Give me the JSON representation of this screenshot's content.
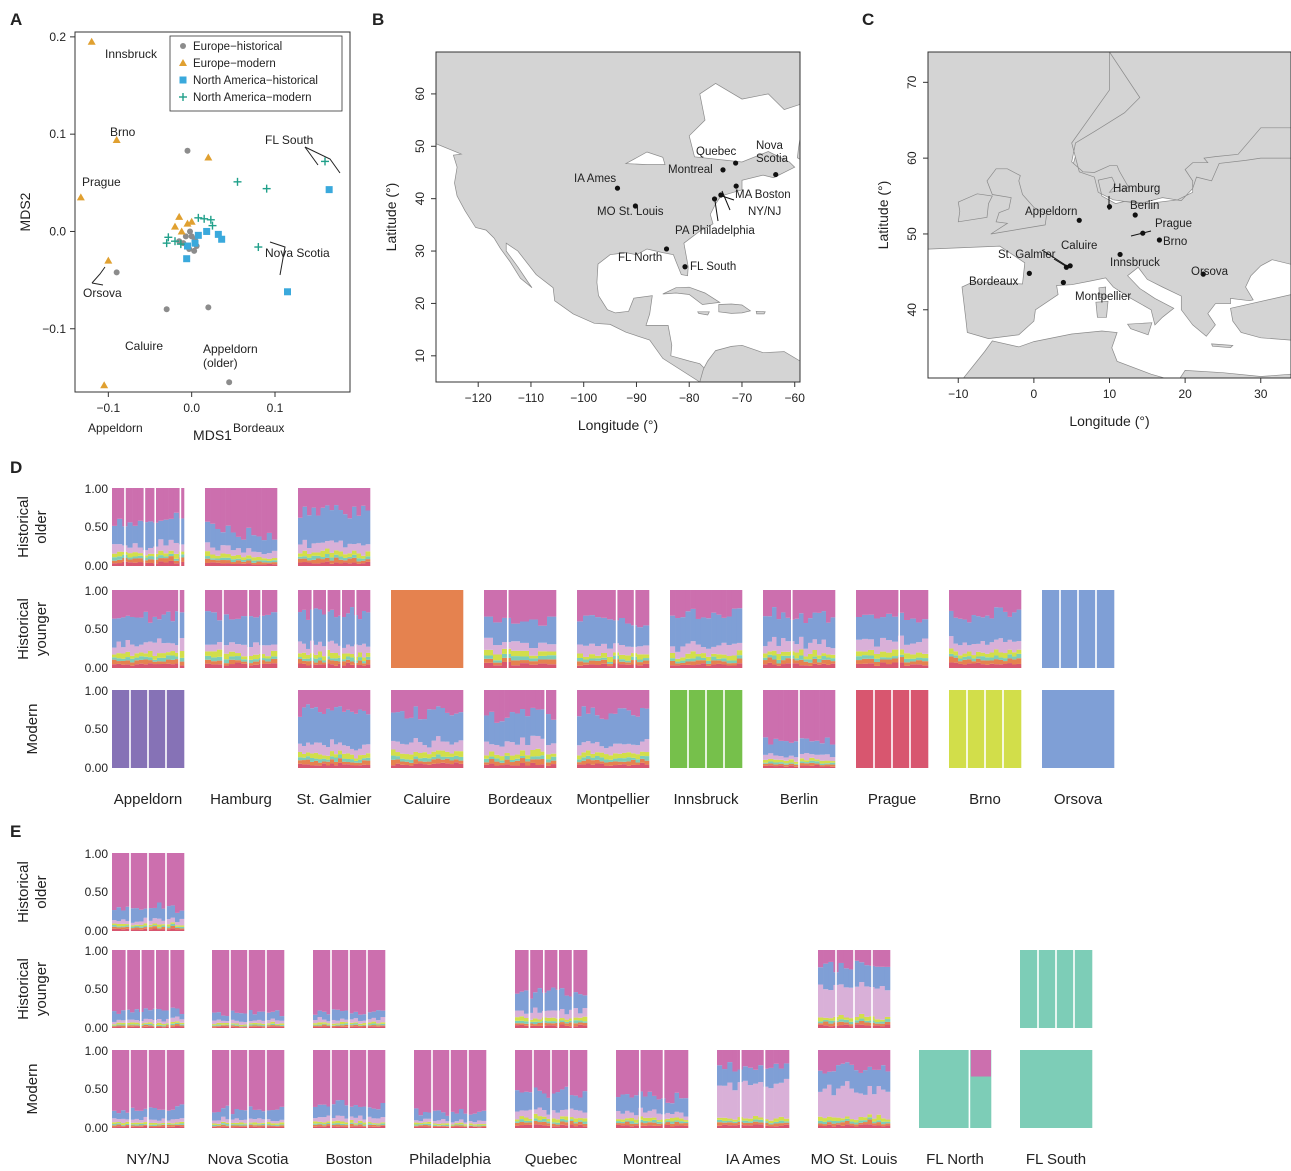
{
  "panels": {
    "a": "A",
    "b": "B",
    "c": "C",
    "d": "D",
    "e": "E"
  },
  "chart_data": [
    {
      "type": "scatter",
      "panel": "A",
      "xlabel": "MDS1",
      "ylabel": "MDS2",
      "xlim": [
        -0.14,
        0.19
      ],
      "ylim": [
        -0.165,
        0.205
      ],
      "xticks": [
        "−0.1",
        "0.0",
        "0.1"
      ],
      "xtick_values": [
        -0.1,
        0.0,
        0.1
      ],
      "yticks": [
        "−0.1",
        "0.0",
        "0.1",
        "0.2"
      ],
      "ytick_values": [
        -0.1,
        0.0,
        0.1,
        0.2
      ],
      "legend_position": "top-right",
      "series": [
        {
          "name": "Europe−historical",
          "marker": "circle",
          "color": "#8c8c8c",
          "points": [
            [
              -0.005,
              0.083
            ],
            [
              -0.09,
              -0.042
            ],
            [
              -0.03,
              -0.08
            ],
            [
              0.02,
              -0.078
            ],
            [
              0.045,
              -0.155
            ],
            [
              -0.01,
              -0.012
            ],
            [
              0.0,
              -0.005
            ],
            [
              -0.003,
              -0.018
            ],
            [
              0.004,
              -0.008
            ],
            [
              -0.015,
              -0.01
            ],
            [
              0.006,
              -0.015
            ],
            [
              -0.007,
              -0.005
            ],
            [
              -0.002,
              0.0
            ],
            [
              0.003,
              -0.02
            ]
          ]
        },
        {
          "name": "Europe−modern",
          "marker": "triangle",
          "color": "#e0a030",
          "points": [
            [
              -0.12,
              0.195
            ],
            [
              -0.09,
              0.094
            ],
            [
              -0.133,
              0.035
            ],
            [
              0.02,
              0.076
            ],
            [
              -0.1,
              -0.03
            ],
            [
              -0.105,
              -0.158
            ],
            [
              -0.015,
              0.015
            ],
            [
              -0.005,
              0.008
            ],
            [
              -0.012,
              0.0
            ],
            [
              0.0,
              0.01
            ],
            [
              -0.02,
              0.005
            ]
          ]
        },
        {
          "name": "North America−historical",
          "marker": "square",
          "color": "#3aa9dc",
          "points": [
            [
              0.165,
              0.043
            ],
            [
              0.115,
              -0.062
            ],
            [
              0.018,
              0.0
            ],
            [
              0.032,
              -0.003
            ],
            [
              0.036,
              -0.008
            ],
            [
              0.008,
              -0.004
            ],
            [
              -0.006,
              -0.028
            ],
            [
              -0.005,
              -0.015
            ],
            [
              0.004,
              -0.012
            ]
          ]
        },
        {
          "name": "North America−modern",
          "marker": "plus",
          "color": "#20a08a",
          "points": [
            [
              0.16,
              0.072
            ],
            [
              0.055,
              0.051
            ],
            [
              0.09,
              0.044
            ],
            [
              0.008,
              0.014
            ],
            [
              0.015,
              0.013
            ],
            [
              0.023,
              0.012
            ],
            [
              0.025,
              0.006
            ],
            [
              0.08,
              -0.016
            ],
            [
              -0.03,
              -0.012
            ],
            [
              -0.02,
              -0.01
            ],
            [
              -0.013,
              -0.013
            ],
            [
              -0.028,
              -0.006
            ]
          ]
        }
      ],
      "annotations": [
        "Innsbruck",
        "Brno",
        "Prague",
        "Orsova",
        "Caluire",
        "Appeldorn\n(older)",
        "Appeldorn",
        "Bordeaux",
        "FL South",
        "Nova Scotia"
      ]
    },
    {
      "type": "scatter",
      "panel": "B",
      "xlabel": "Longitude (°)",
      "ylabel": "Latitude (°)",
      "xlim": [
        -128,
        -59
      ],
      "ylim": [
        5,
        68
      ],
      "xtick_values": [
        -120,
        -110,
        -100,
        -90,
        -80,
        -70,
        -60
      ],
      "xticks": [
        "−120",
        "−110",
        "−100",
        "−90",
        "−80",
        "−70",
        "−60"
      ],
      "ytick_values": [
        10,
        20,
        30,
        40,
        50,
        60
      ],
      "yticks": [
        "10",
        "20",
        "30",
        "40",
        "50",
        "60"
      ],
      "points": [
        {
          "label": "IA Ames",
          "lon": -93.6,
          "lat": 42.0
        },
        {
          "label": "MO St. Louis",
          "lon": -90.2,
          "lat": 38.6
        },
        {
          "label": "Quebec",
          "lon": -71.2,
          "lat": 46.8
        },
        {
          "label": "Montreal",
          "lon": -73.6,
          "lat": 45.5
        },
        {
          "label": "Nova\nScotia",
          "lon": -63.6,
          "lat": 44.6
        },
        {
          "label": "MA Boston",
          "lon": -71.1,
          "lat": 42.4
        },
        {
          "label": "NY/NJ",
          "lon": -74.0,
          "lat": 40.7
        },
        {
          "label": "PA Philadelphia",
          "lon": -75.2,
          "lat": 39.95
        },
        {
          "label": "FL North",
          "lon": -84.3,
          "lat": 30.4
        },
        {
          "label": "FL South",
          "lon": -80.8,
          "lat": 27.0
        }
      ]
    },
    {
      "type": "scatter",
      "panel": "C",
      "xlabel": "Longitude (°)",
      "ylabel": "Latitude (°)",
      "xlim": [
        -14,
        34
      ],
      "ylim": [
        31,
        74
      ],
      "xtick_values": [
        -10,
        0,
        10,
        20,
        30
      ],
      "xticks": [
        "−10",
        "0",
        "10",
        "20",
        "30"
      ],
      "ytick_values": [
        40,
        50,
        60,
        70
      ],
      "yticks": [
        "40",
        "50",
        "60",
        "70"
      ],
      "points": [
        {
          "label": "Hamburg",
          "lon": 10.0,
          "lat": 53.6
        },
        {
          "label": "Berlin",
          "lon": 13.4,
          "lat": 52.5
        },
        {
          "label": "Appeldorn",
          "lon": 6.0,
          "lat": 51.8
        },
        {
          "label": "Prague",
          "lon": 14.4,
          "lat": 50.1
        },
        {
          "label": "Brno",
          "lon": 16.6,
          "lat": 49.2
        },
        {
          "label": "Caluire",
          "lon": 4.8,
          "lat": 45.8
        },
        {
          "label": "St. Galmier",
          "lon": 4.3,
          "lat": 45.6
        },
        {
          "label": "Innsbruck",
          "lon": 11.4,
          "lat": 47.3
        },
        {
          "label": "Bordeaux",
          "lon": -0.6,
          "lat": 44.8
        },
        {
          "label": "Montpellier",
          "lon": 3.9,
          "lat": 43.6
        },
        {
          "label": "Orsova",
          "lon": 22.4,
          "lat": 44.7
        }
      ]
    },
    {
      "type": "bar",
      "panel": "D",
      "subtype": "stacked-ancestry",
      "rows": [
        "Historical\nolder",
        "Historical\nyounger",
        "Modern"
      ],
      "yticks": [
        "1.00",
        "0.50",
        "0.00"
      ],
      "columns": [
        "Appeldorn",
        "Hamburg",
        "St. Galmier",
        "Caluire",
        "Bordeaux",
        "Montpellier",
        "Innsbruck",
        "Berlin",
        "Prague",
        "Brno",
        "Orsova"
      ]
    },
    {
      "type": "bar",
      "panel": "E",
      "subtype": "stacked-ancestry",
      "rows": [
        "Historical\nolder",
        "Historical\nyounger",
        "Modern"
      ],
      "yticks": [
        "1.00",
        "0.50",
        "0.00"
      ],
      "columns": [
        "NY/NJ",
        "Nova Scotia",
        "Boston",
        "Philadelphia",
        "Quebec",
        "Montreal",
        "IA Ames",
        "MO St. Louis",
        "FL North",
        "FL South"
      ]
    }
  ],
  "colors": {
    "magenta": "#cc6fae",
    "blue": "#7f9fd6",
    "pink": "#d9b0d8",
    "lime": "#d2de4a",
    "teal": "#7dcdb7",
    "orange": "#e5824f",
    "red": "#d8566f",
    "purple": "#8672b6",
    "green": "#76c04b",
    "yellow": "#eddd56",
    "land": "#d4d4d4",
    "border": "#8a8a8a"
  }
}
